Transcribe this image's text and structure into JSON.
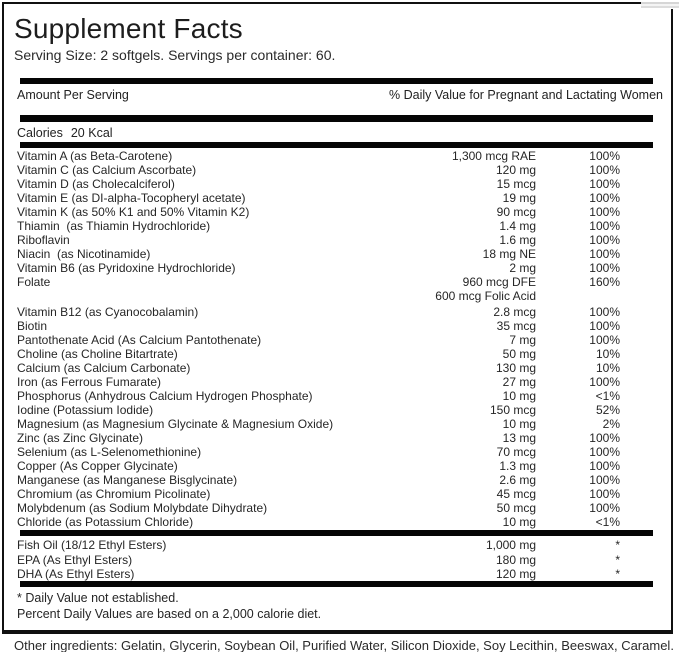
{
  "colors": {
    "ink": "#1e1e1e",
    "bar": "#050505",
    "background": "#ffffff"
  },
  "label": {
    "title": "Supplement Facts",
    "serving_info": "Serving Size: 2 softgels. Servings per container: 60.",
    "amount_header": "Amount Per Serving",
    "dv_header": "% Daily Value for Pregnant and Lactating Women",
    "calories_label": "Calories",
    "calories_value": "20 Kcal",
    "nutrients": [
      {
        "name": "Vitamin A (as Beta-Carotene)",
        "amount": "1,300 mcg RAE",
        "dv": "100%"
      },
      {
        "name": "Vitamin C (as Calcium Ascorbate)",
        "amount": "120 mg",
        "dv": "100%"
      },
      {
        "name": "Vitamin D (as Cholecalciferol)",
        "amount": "15 mcg",
        "dv": "100%"
      },
      {
        "name": "Vitamin E (as DI-alpha-Tocopheryl acetate)",
        "amount": "19 mg",
        "dv": "100%"
      },
      {
        "name": "Vitamin K (as 50% K1 and 50% Vitamin K2)",
        "amount": "90 mcg",
        "dv": "100%"
      },
      {
        "name": "Thiamin  (as Thiamin Hydrochloride)",
        "amount": "1.4 mg",
        "dv": "100%"
      },
      {
        "name": "Riboflavin",
        "amount": "1.6 mg",
        "dv": "100%"
      },
      {
        "name": "Niacin  (as Nicotinamide)",
        "amount": "18 mg NE",
        "dv": "100%"
      },
      {
        "name": "Vitamin B6 (as Pyridoxine Hydrochloride)",
        "amount": "2 mg",
        "dv": "100%"
      },
      {
        "name": "Folate",
        "amount": "960 mcg DFE",
        "dv": "160%"
      },
      {
        "name": "",
        "amount": "600 mcg Folic Acid",
        "dv": ""
      },
      {
        "name": "Vitamin B12 (as Cyanocobalamin)",
        "amount": "2.8 mcg",
        "dv": "100%"
      },
      {
        "name": "Biotin",
        "amount": "35 mcg",
        "dv": "100%"
      },
      {
        "name": "Pantothenate Acid (As Calcium Pantothenate)",
        "amount": "7 mg",
        "dv": "100%"
      },
      {
        "name": "Choline (as Choline Bitartrate)",
        "amount": "50 mg",
        "dv": "10%"
      },
      {
        "name": "Calcium (as Calcium Carbonate)",
        "amount": "130 mg",
        "dv": "10%"
      },
      {
        "name": "Iron (as Ferrous Fumarate)",
        "amount": "27 mg",
        "dv": "100%"
      },
      {
        "name": "Phosphorus (Anhydrous Calcium Hydrogen Phosphate)",
        "amount": "10 mg",
        "dv": "<1%"
      },
      {
        "name": "Iodine (Potassium Iodide)",
        "amount": "150 mcg",
        "dv": "52%"
      },
      {
        "name": "Magnesium (as Magnesium Glycinate & Magnesium Oxide)",
        "amount": "10 mg",
        "dv": "2%"
      },
      {
        "name": "Zinc (as Zinc Glycinate)",
        "amount": "13 mg",
        "dv": "100%"
      },
      {
        "name": "Selenium (as L-Selenomethionine)",
        "amount": "70 mcg",
        "dv": "100%"
      },
      {
        "name": "Copper (As Copper Glycinate)",
        "amount": "1.3 mg",
        "dv": "100%"
      },
      {
        "name": "Manganese (as Manganese Bisglycinate)",
        "amount": "2.6 mg",
        "dv": "100%"
      },
      {
        "name": "Chromium (as Chromium Picolinate)",
        "amount": "45 mcg",
        "dv": "100%"
      },
      {
        "name": "Molybdenum (as Sodium Molybdate Dihydrate)",
        "amount": "50 mcg",
        "dv": "100%"
      },
      {
        "name": "Chloride (as Potassium Chloride)",
        "amount": "10 mg",
        "dv": "<1%"
      }
    ],
    "oils": [
      {
        "name": "Fish Oil (18/12 Ethyl Esters)",
        "amount": "1,000 mg",
        "dv": "*"
      },
      {
        "name": "EPA (As Ethyl Esters)",
        "amount": "180 mg",
        "dv": "*"
      },
      {
        "name": "DHA (As Ethyl Esters)",
        "amount": "120 mg",
        "dv": "*"
      }
    ],
    "footnotes": [
      "* Daily Value not established.",
      "Percent Daily Values are based on a 2,000 calorie diet."
    ],
    "other_ingredients": "Other ingredients: Gelatin, Glycerin, Soybean Oil, Purified Water, Silicon Dioxide, Soy Lecithin, Beeswax, Caramel."
  }
}
